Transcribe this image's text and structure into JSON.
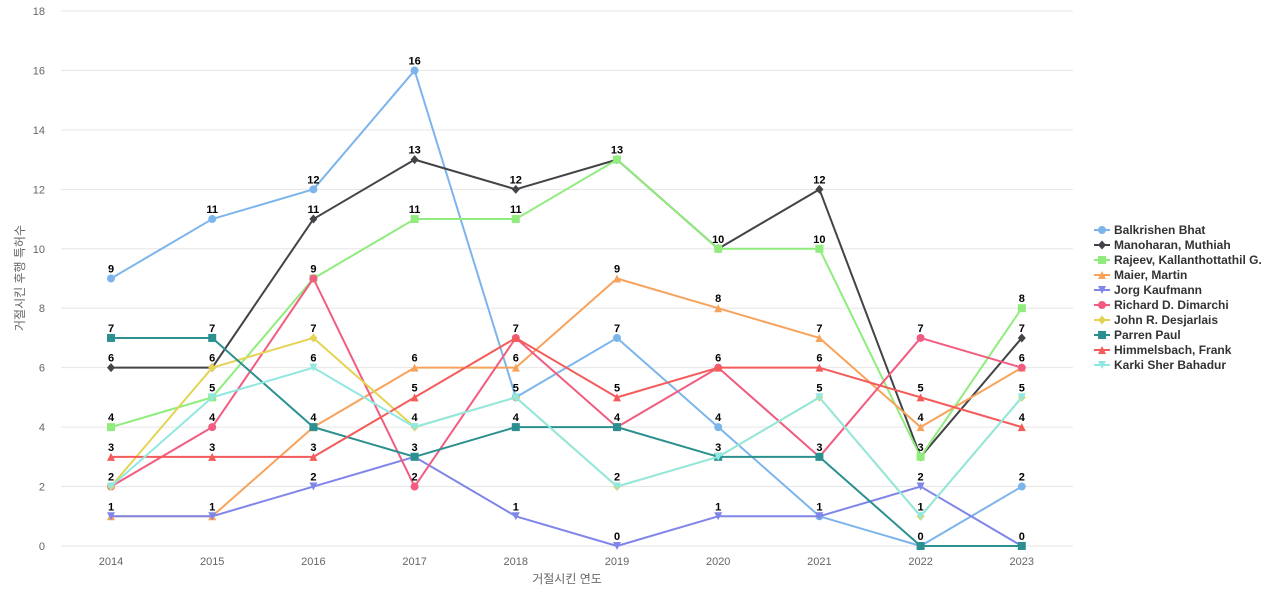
{
  "chart_data": {
    "type": "line",
    "xlabel": "거절시킨 연도",
    "ylabel": "거절시킨 후행 특허수",
    "categories": [
      "2014",
      "2015",
      "2016",
      "2017",
      "2018",
      "2019",
      "2020",
      "2021",
      "2022",
      "2023"
    ],
    "ylim": [
      0,
      18
    ],
    "yticks": [
      0,
      2,
      4,
      6,
      8,
      10,
      12,
      14,
      16,
      18
    ],
    "grid": "horizontal",
    "legend_position": "right",
    "data_labels": true,
    "series": [
      {
        "name": "Balkrishen Bhat",
        "color": "#7cb5ec",
        "marker": "circle",
        "values": [
          9,
          11,
          12,
          16,
          5,
          7,
          4,
          1,
          0,
          2
        ]
      },
      {
        "name": "Manoharan, Muthiah",
        "color": "#434348",
        "marker": "diamond",
        "values": [
          6,
          6,
          11,
          13,
          12,
          13,
          10,
          12,
          3,
          7
        ]
      },
      {
        "name": "Rajeev, Kallanthottathil G.",
        "color": "#90ed7d",
        "marker": "square",
        "values": [
          4,
          5,
          9,
          11,
          11,
          13,
          10,
          10,
          3,
          8
        ]
      },
      {
        "name": "Maier, Martin",
        "color": "#f7a35c",
        "marker": "triangle",
        "values": [
          1,
          1,
          4,
          6,
          6,
          9,
          8,
          7,
          4,
          6
        ]
      },
      {
        "name": "Jorg Kaufmann",
        "color": "#8085e9",
        "marker": "triangle-down",
        "values": [
          1,
          1,
          2,
          3,
          1,
          0,
          1,
          1,
          2,
          0
        ]
      },
      {
        "name": "Richard D. Dimarchi",
        "color": "#f15c80",
        "marker": "circle",
        "values": [
          2,
          4,
          9,
          2,
          7,
          4,
          6,
          3,
          7,
          6
        ]
      },
      {
        "name": "John R. Desjarlais",
        "color": "#e4d354",
        "marker": "diamond",
        "values": [
          2,
          6,
          7,
          4,
          5,
          2,
          3,
          5,
          1,
          5
        ]
      },
      {
        "name": "Parren Paul",
        "color": "#2b908f",
        "marker": "square",
        "values": [
          7,
          7,
          4,
          3,
          4,
          4,
          3,
          3,
          0,
          0
        ]
      },
      {
        "name": "Himmelsbach, Frank",
        "color": "#f45b5b",
        "marker": "triangle",
        "values": [
          3,
          3,
          3,
          5,
          7,
          5,
          6,
          6,
          5,
          4
        ]
      },
      {
        "name": "Karki Sher Bahadur",
        "color": "#91e8e1",
        "marker": "triangle-down",
        "values": [
          2,
          5,
          6,
          4,
          5,
          2,
          3,
          5,
          1,
          5
        ]
      }
    ]
  }
}
